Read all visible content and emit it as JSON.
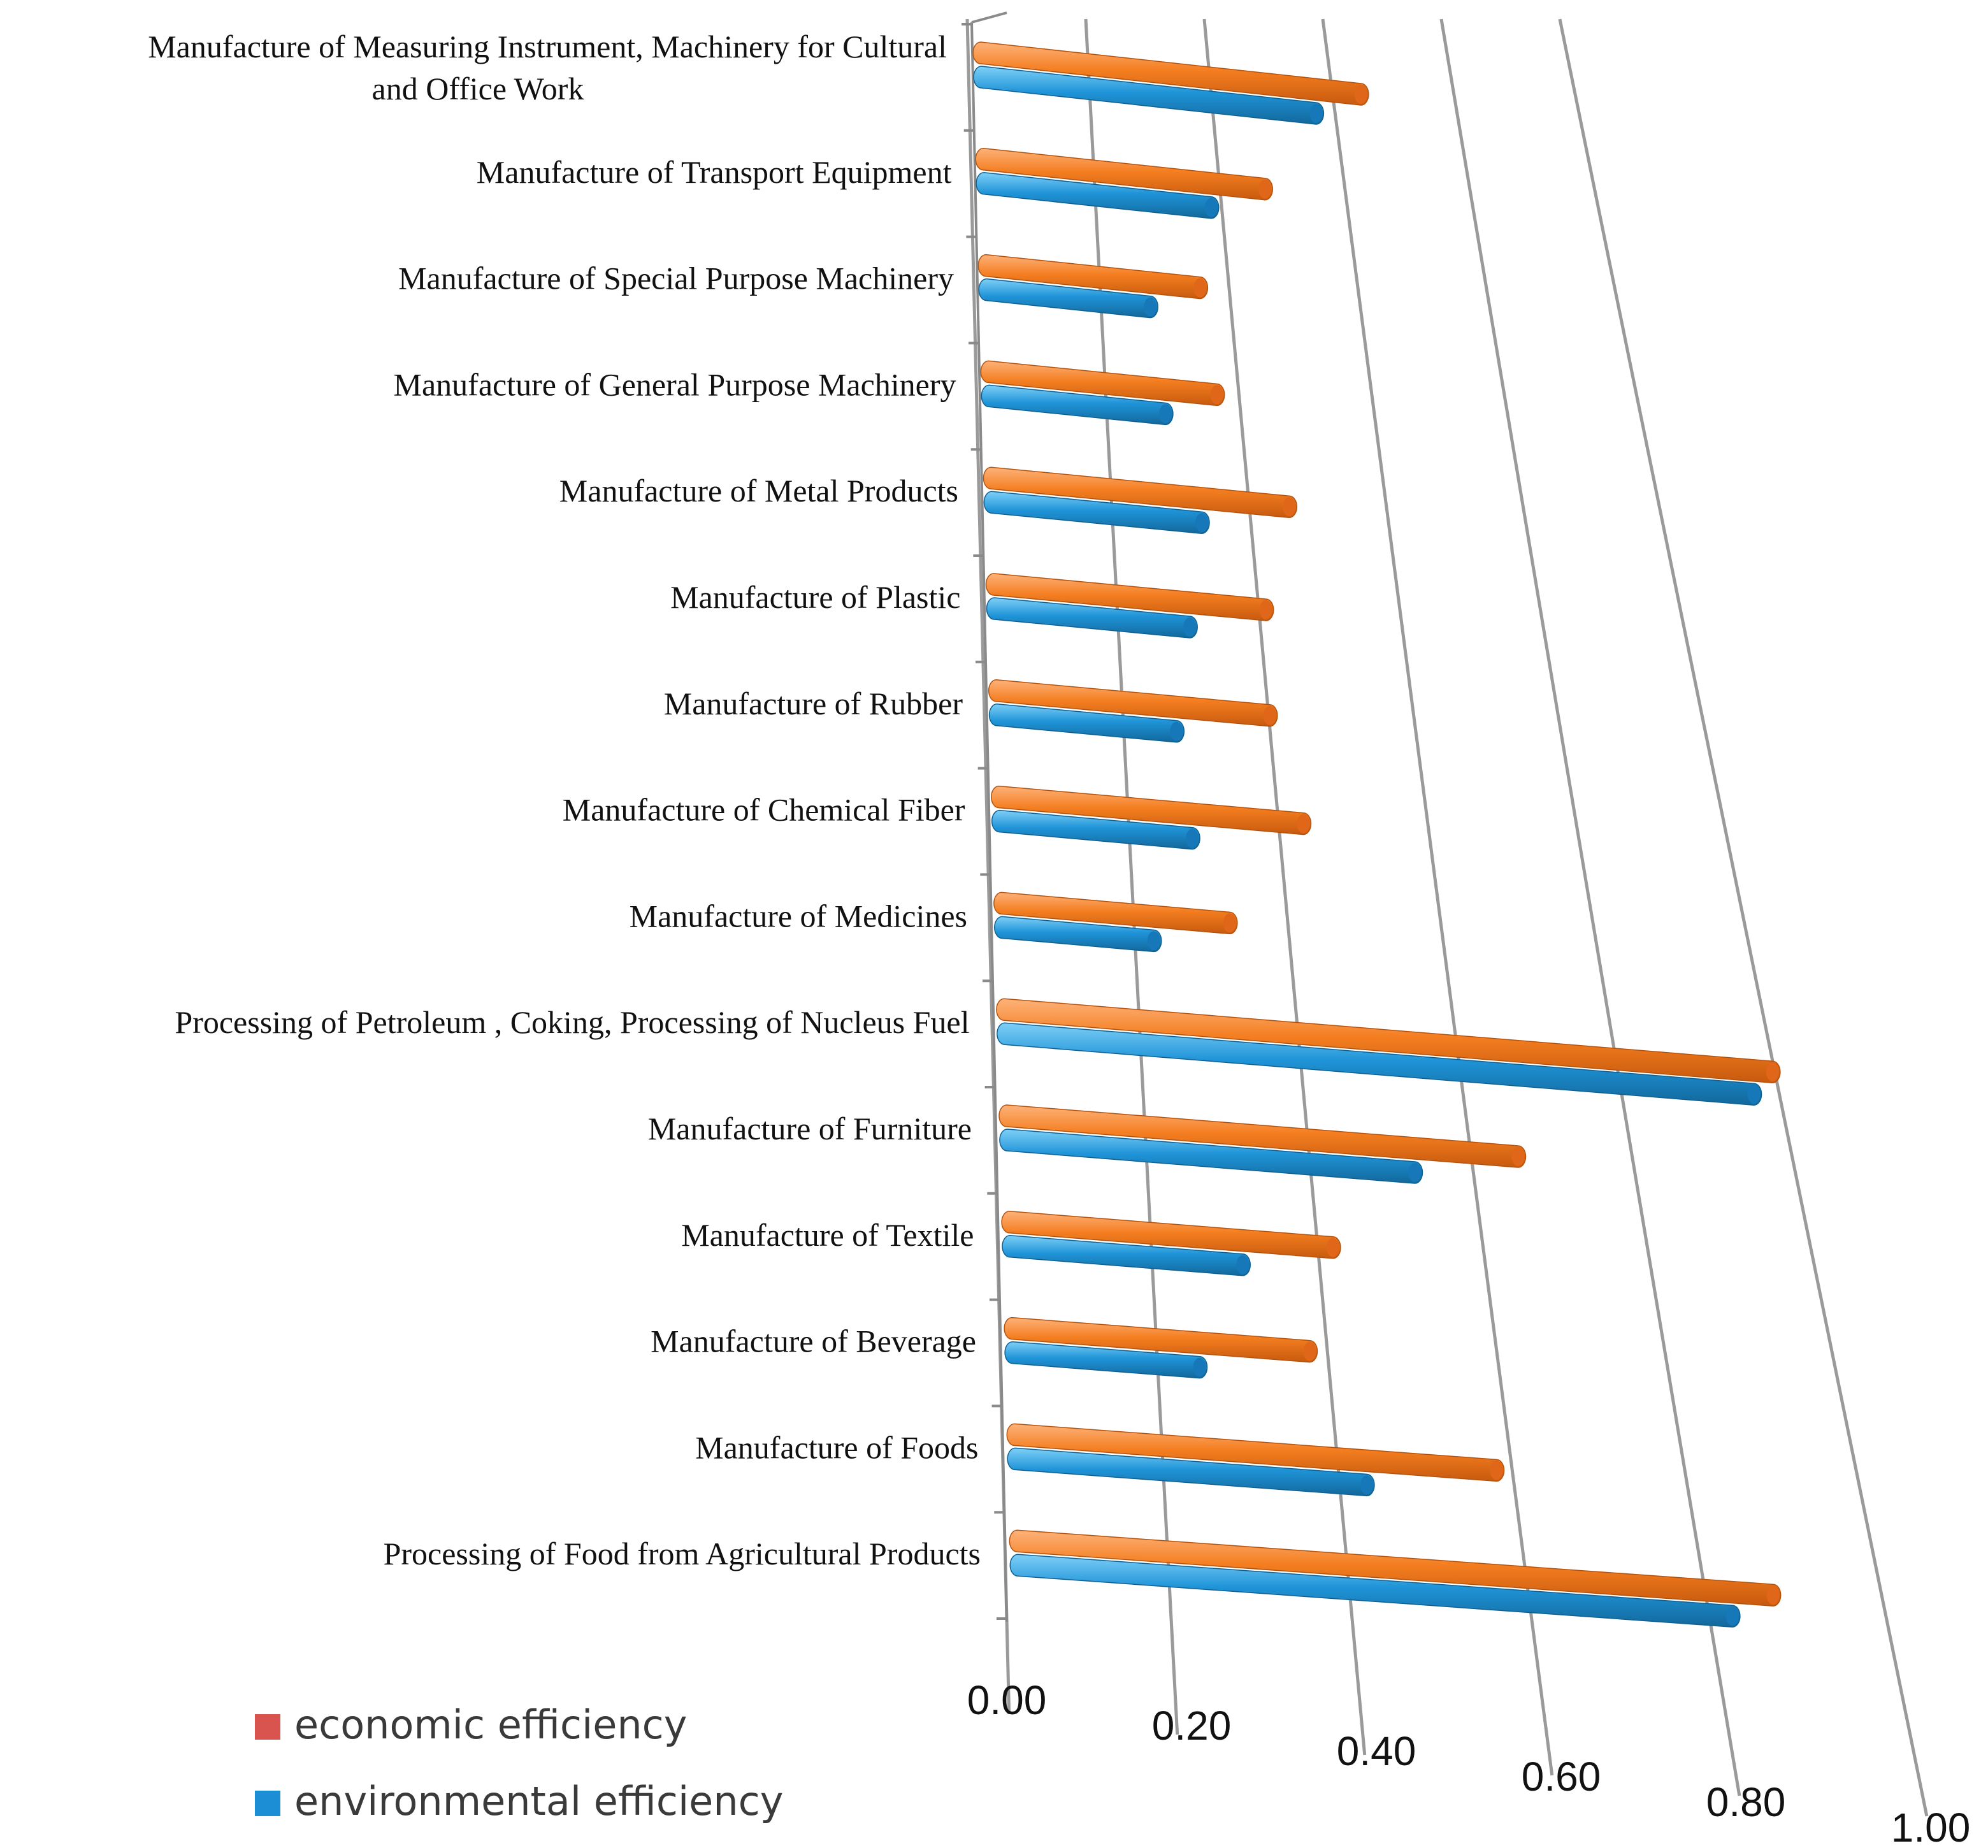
{
  "chart_data": {
    "type": "bar",
    "orientation": "horizontal",
    "title": "",
    "xlabel": "",
    "ylabel": "",
    "xlim": [
      0,
      1.0
    ],
    "grid": true,
    "legend_position": "bottom-left",
    "categories": [
      "Manufacture of Measuring Instrument, Machinery for Cultural and Office Work",
      "Manufacture of Transport Equipment",
      "Manufacture of Special Purpose Machinery",
      "Manufacture of General Purpose Machinery",
      "Manufacture of Metal Products",
      "Manufacture of Plastic",
      "Manufacture of Rubber",
      "Manufacture of Chemical Fiber",
      "Manufacture of Medicines",
      "Processing of Petroleum , Coking, Processing of Nucleus Fuel",
      "Manufacture of Furniture",
      "Manufacture of Textile",
      "Manufacture of Beverage",
      "Manufacture of Foods",
      "Processing of Food from Agricultural Products"
    ],
    "category_lines": [
      [
        "Manufacture of Measuring Instrument, Machinery for Cultural",
        "and Office Work"
      ],
      [
        "Manufacture of Transport Equipment"
      ],
      [
        "Manufacture of Special Purpose Machinery"
      ],
      [
        "Manufacture of General Purpose Machinery"
      ],
      [
        "Manufacture of Metal Products"
      ],
      [
        "Manufacture of Plastic"
      ],
      [
        "Manufacture of Rubber"
      ],
      [
        "Manufacture of Chemical Fiber"
      ],
      [
        "Manufacture of Medicines"
      ],
      [
        "Processing of Petroleum , Coking, Processing of Nucleus Fuel"
      ],
      [
        "Manufacture of Furniture"
      ],
      [
        "Manufacture of Textile"
      ],
      [
        "Manufacture of Beverage"
      ],
      [
        "Manufacture of Foods"
      ],
      [
        "Processing of Food from Agricultural Products"
      ]
    ],
    "series": [
      {
        "name": "economic efficiency",
        "legend_color": "#d9534f",
        "bar_color": "#f47e20",
        "values": [
          0.65,
          0.47,
          0.35,
          0.36,
          0.45,
          0.4,
          0.39,
          0.42,
          0.31,
          0.98,
          0.64,
          0.4,
          0.36,
          0.56,
          0.85
        ]
      },
      {
        "name": "environmental efficiency",
        "legend_color": "#1b8ed6",
        "bar_color": "#1f94d8",
        "values": [
          0.57,
          0.38,
          0.27,
          0.28,
          0.32,
          0.29,
          0.26,
          0.27,
          0.21,
          0.95,
          0.51,
          0.29,
          0.23,
          0.41,
          0.8
        ]
      }
    ],
    "x_ticks": [
      "0.00",
      "0.20",
      "0.40",
      "0.60",
      "0.80",
      "1.00"
    ]
  }
}
